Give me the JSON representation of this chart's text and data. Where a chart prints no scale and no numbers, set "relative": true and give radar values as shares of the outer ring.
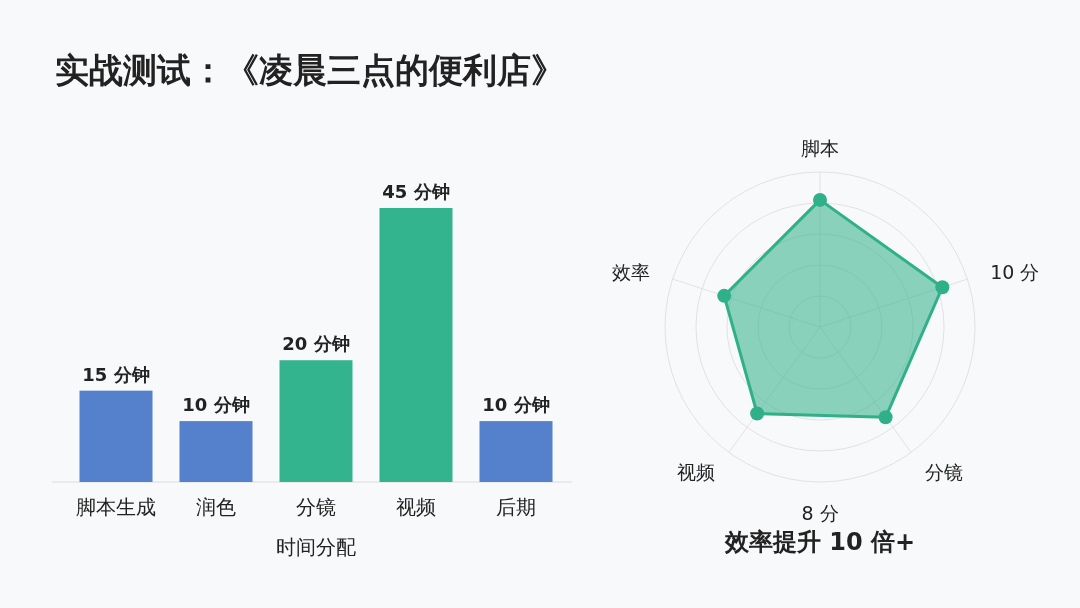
{
  "chart_data": [
    {
      "type": "bar",
      "title": "实战测试：《凌晨三点的便利店》",
      "xlabel": "时间分配",
      "categories": [
        "脚本生成",
        "润色",
        "分镜",
        "视频",
        "后期"
      ],
      "values": [
        15,
        10,
        20,
        45,
        10
      ],
      "colors": [
        "#5580cc",
        "#5580cc",
        "#34b38f",
        "#34b38f",
        "#5580cc"
      ],
      "value_labels": [
        "15 分钟",
        "10 分钟",
        "20 分钟",
        "45 分钟",
        "10 分钟"
      ]
    },
    {
      "type": "radar",
      "title": "效率提升 10 倍+",
      "categories": [
        "脚本",
        "10 分",
        "分镜",
        "视频",
        "效率"
      ],
      "relative": true,
      "grid": true,
      "marker": "circle",
      "annotations": [
        "8 分"
      ],
      "series": [
        {
          "color": "#2fb088",
          "values": [
            0.82,
            0.83,
            0.72,
            0.69,
            0.65
          ]
        }
      ]
    }
  ]
}
